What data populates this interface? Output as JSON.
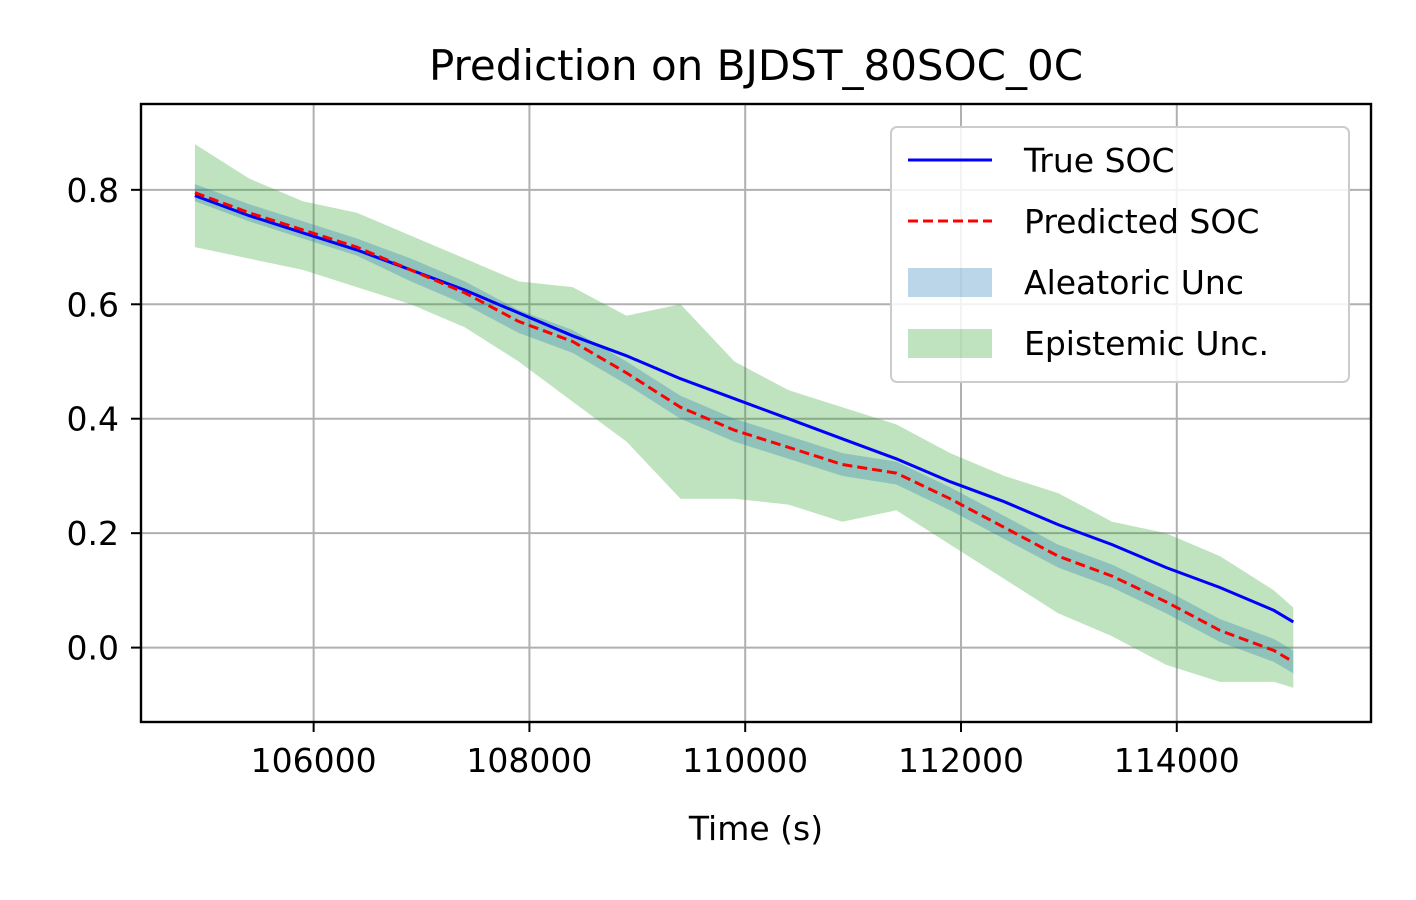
{
  "chart_data": {
    "type": "line",
    "title": "Prediction on BJDST_80SOC_0C",
    "xlabel": "Time (s)",
    "ylabel": "",
    "xlim": [
      104400,
      115800
    ],
    "ylim": [
      -0.13,
      0.95
    ],
    "xticks": [
      106000,
      108000,
      110000,
      112000,
      114000
    ],
    "xtick_labels": [
      "106000",
      "108000",
      "110000",
      "112000",
      "114000"
    ],
    "yticks": [
      0.0,
      0.2,
      0.4,
      0.6,
      0.8
    ],
    "ytick_labels": [
      "0.0",
      "0.2",
      "0.4",
      "0.6",
      "0.8"
    ],
    "grid": true,
    "legend_position": "top-right",
    "legend": [
      {
        "label": "True SOC",
        "kind": "line",
        "color": "#0000ff",
        "dash": "solid"
      },
      {
        "label": "Predicted SOC",
        "kind": "line",
        "color": "#ff0000",
        "dash": "dashed"
      },
      {
        "label": "Aleatoric Unc",
        "kind": "patch",
        "color": "#1f77b4"
      },
      {
        "label": "Epistemic Unc.",
        "kind": "patch",
        "color": "#2ca02c"
      }
    ],
    "x": [
      104900,
      105400,
      105900,
      106400,
      106900,
      107400,
      107900,
      108400,
      108900,
      109400,
      109900,
      110400,
      110900,
      111400,
      111900,
      112400,
      112900,
      113400,
      113900,
      114400,
      114900,
      115080
    ],
    "series": [
      {
        "name": "True SOC",
        "color": "#0000ff",
        "values": [
          0.79,
          0.755,
          0.725,
          0.695,
          0.66,
          0.625,
          0.585,
          0.545,
          0.51,
          0.47,
          0.435,
          0.4,
          0.365,
          0.33,
          0.29,
          0.255,
          0.215,
          0.18,
          0.14,
          0.105,
          0.065,
          0.045
        ]
      },
      {
        "name": "Predicted SOC",
        "color": "#ff0000",
        "values": [
          0.795,
          0.76,
          0.73,
          0.7,
          0.66,
          0.62,
          0.57,
          0.535,
          0.48,
          0.42,
          0.38,
          0.35,
          0.32,
          0.305,
          0.26,
          0.21,
          0.16,
          0.125,
          0.08,
          0.03,
          -0.005,
          -0.025
        ]
      },
      {
        "name": "Aleatoric Unc",
        "color": "#1f77b4",
        "upper": [
          0.81,
          0.775,
          0.745,
          0.715,
          0.68,
          0.64,
          0.59,
          0.555,
          0.5,
          0.44,
          0.4,
          0.37,
          0.34,
          0.325,
          0.28,
          0.23,
          0.18,
          0.145,
          0.1,
          0.05,
          0.015,
          -0.005
        ],
        "lower": [
          0.78,
          0.745,
          0.715,
          0.685,
          0.64,
          0.6,
          0.55,
          0.515,
          0.46,
          0.4,
          0.36,
          0.33,
          0.3,
          0.285,
          0.24,
          0.19,
          0.14,
          0.105,
          0.06,
          0.01,
          -0.025,
          -0.045
        ]
      },
      {
        "name": "Epistemic Unc.",
        "color": "#2ca02c",
        "upper": [
          0.88,
          0.82,
          0.78,
          0.76,
          0.72,
          0.68,
          0.64,
          0.63,
          0.58,
          0.6,
          0.5,
          0.45,
          0.42,
          0.39,
          0.34,
          0.3,
          0.27,
          0.22,
          0.2,
          0.16,
          0.1,
          0.07
        ],
        "lower": [
          0.7,
          0.68,
          0.66,
          0.63,
          0.6,
          0.56,
          0.5,
          0.43,
          0.36,
          0.26,
          0.26,
          0.25,
          0.22,
          0.24,
          0.18,
          0.12,
          0.06,
          0.02,
          -0.03,
          -0.06,
          -0.06,
          -0.07
        ]
      }
    ]
  }
}
